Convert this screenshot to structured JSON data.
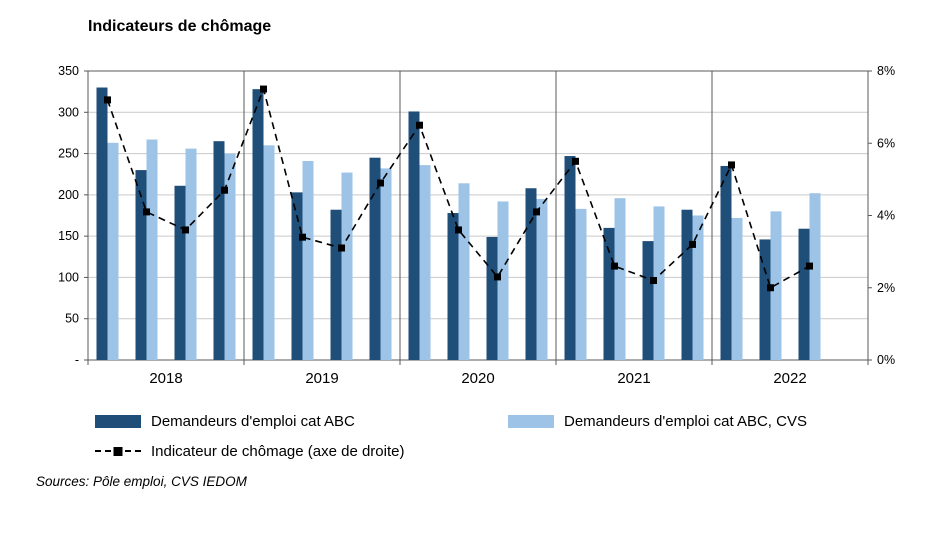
{
  "title": "Indicateurs de chômage",
  "source": "Sources: Pôle emploi, CVS IEDOM",
  "colors": {
    "bar_dark": "#1F4E79",
    "bar_light": "#9DC3E6",
    "line": "#000000",
    "grid": "#C9C9C9",
    "frame": "#595959",
    "text": "#000000"
  },
  "legend": [
    {
      "label": "Demandeurs d'emploi cat ABC",
      "swatch": "bar_dark"
    },
    {
      "label": "Demandeurs d'emploi cat ABC, CVS",
      "swatch": "bar_light"
    },
    {
      "label": "Indicateur de chômage (axe de droite)",
      "swatch": "line"
    }
  ],
  "chart_data": {
    "type": "bar",
    "title": "Indicateurs de chômage",
    "x_groups": [
      "2018",
      "2019",
      "2020",
      "2021",
      "2022"
    ],
    "slots_per_group": 4,
    "points_per_group": [
      4,
      4,
      4,
      4,
      3
    ],
    "series": [
      {
        "name": "Demandeurs d'emploi cat ABC",
        "type": "bar",
        "axis": "left",
        "color": "#1F4E79",
        "values": [
          330,
          230,
          211,
          265,
          328,
          203,
          182,
          245,
          301,
          178,
          149,
          208,
          247,
          160,
          144,
          182,
          235,
          146,
          159
        ]
      },
      {
        "name": "Demandeurs d'emploi cat ABC, CVS",
        "type": "bar",
        "axis": "left",
        "color": "#9DC3E6",
        "values": [
          263,
          267,
          256,
          250,
          260,
          241,
          227,
          232,
          236,
          214,
          192,
          195,
          183,
          196,
          186,
          175,
          172,
          180,
          202
        ]
      },
      {
        "name": "Indicateur de chômage (axe de droite)",
        "type": "line",
        "axis": "right",
        "color": "#000000",
        "values": [
          7.2,
          4.1,
          3.6,
          4.7,
          7.5,
          3.4,
          3.1,
          4.9,
          6.5,
          3.6,
          2.3,
          4.1,
          5.5,
          2.6,
          2.2,
          3.2,
          5.4,
          2.0,
          2.6
        ]
      }
    ],
    "left_axis": {
      "min": 0,
      "max": 350,
      "tick_values": [
        0,
        50,
        100,
        150,
        200,
        250,
        300,
        350
      ],
      "tick_labels": [
        "-",
        "50",
        "100",
        "150",
        "200",
        "250",
        "300",
        "350"
      ]
    },
    "right_axis": {
      "min": 0,
      "max": 8,
      "tick_values": [
        0,
        2,
        4,
        6,
        8
      ],
      "tick_labels": [
        "0%",
        "2%",
        "4%",
        "6%",
        "8%"
      ]
    },
    "grid": true,
    "legend_position": "bottom"
  }
}
